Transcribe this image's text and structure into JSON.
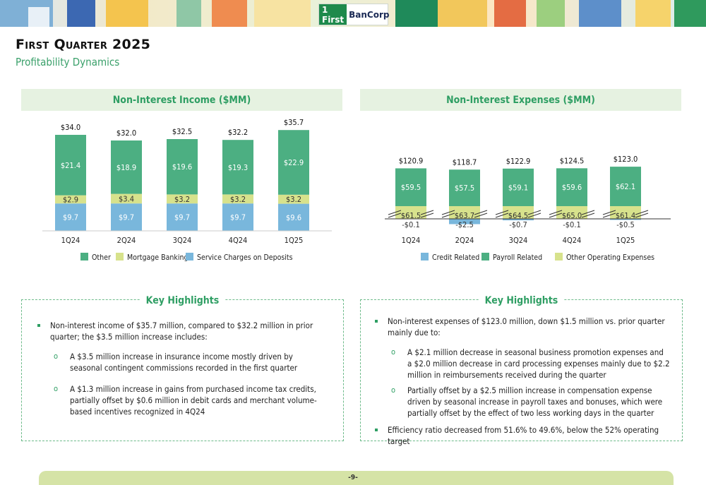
{
  "header": {
    "logo_mark": "1 First",
    "logo_name": "BanCorp"
  },
  "title": "First Quarter 2025",
  "subtitle": "Profitability Dynamics",
  "page_number": "-9-",
  "colors": {
    "other": "#4caf82",
    "mortgage": "#d7e28c",
    "service": "#79b7dc",
    "credit": "#79b7dc",
    "payroll": "#4caf82",
    "other_opex": "#d7e28c",
    "accent": "#2e9e63"
  },
  "chart_data": [
    {
      "type": "bar",
      "title": "Non-Interest Income ($MM)",
      "stacked": true,
      "categories": [
        "1Q24",
        "2Q24",
        "3Q24",
        "4Q24",
        "1Q25"
      ],
      "series": [
        {
          "name": "Service Charges on Deposits",
          "values": [
            9.7,
            9.7,
            9.7,
            9.7,
            9.6
          ],
          "labels": [
            "$9.7",
            "$9.7",
            "$9.7",
            "$9.7",
            "$9.6"
          ]
        },
        {
          "name": "Mortgage Banking",
          "values": [
            2.9,
            3.4,
            3.2,
            3.2,
            3.2
          ],
          "labels": [
            "$2.9",
            "$3.4",
            "$3.2",
            "$3.2",
            "$3.2"
          ]
        },
        {
          "name": "Other",
          "values": [
            21.4,
            18.9,
            19.6,
            19.3,
            22.9
          ],
          "labels": [
            "$21.4",
            "$18.9",
            "$19.6",
            "$19.3",
            "$22.9"
          ]
        }
      ],
      "totals": [
        "$34.0",
        "$32.0",
        "$32.5",
        "$32.2",
        "$35.7"
      ],
      "legend": [
        "Other",
        "Mortgage Banking",
        "Service Charges on Deposits"
      ],
      "legend_position": "bottom"
    },
    {
      "type": "bar",
      "title": "Non-Interest Expenses ($MM)",
      "stacked": true,
      "axis_break": true,
      "categories": [
        "1Q24",
        "2Q24",
        "3Q24",
        "4Q24",
        "1Q25"
      ],
      "series": [
        {
          "name": "Credit Related",
          "values": [
            -0.1,
            -2.5,
            -0.7,
            -0.1,
            -0.5
          ],
          "labels": [
            "-$0.1",
            "-$2.5",
            "-$0.7",
            "-$0.1",
            "-$0.5"
          ]
        },
        {
          "name": "Other Operating Expenses",
          "values": [
            61.5,
            63.7,
            64.5,
            65.0,
            61.4
          ],
          "labels": [
            "$61.5",
            "$63.7",
            "$64.5",
            "$65.0",
            "$61.4"
          ]
        },
        {
          "name": "Payroll Related",
          "values": [
            59.5,
            57.5,
            59.1,
            59.6,
            62.1
          ],
          "labels": [
            "$59.5",
            "$57.5",
            "$59.1",
            "$59.6",
            "$62.1"
          ]
        }
      ],
      "totals": [
        "$120.9",
        "$118.7",
        "$122.9",
        "$124.5",
        "$123.0"
      ],
      "legend": [
        "Credit Related",
        "Payroll Related",
        "Other Operating Expenses"
      ],
      "legend_position": "bottom"
    }
  ],
  "highlights_left": {
    "title": "Key Highlights",
    "bullet": "Non-interest income of $35.7 million, compared to $32.2 million in prior quarter; the $3.5 million increase includes:",
    "sub": [
      "A $3.5 million increase in insurance income mostly driven by seasonal contingent commissions recorded in the first quarter",
      "A $1.3 million increase in gains from purchased income tax credits, partially offset by $0.6 million in debit cards and merchant volume-based incentives recognized in 4Q24"
    ]
  },
  "highlights_right": {
    "title": "Key Highlights",
    "bullet": "Non-interest expenses of $123.0 million, down $1.5 million vs. prior quarter mainly due to:",
    "sub": [
      "A $2.1 million decrease in seasonal business promotion expenses and a $2.0 million decrease in card processing expenses mainly due to $2.2 million in reimbursements received during the quarter",
      "Partially offset by a $2.5 million increase in compensation expense driven by seasonal increase in payroll taxes and bonuses, which were partially offset by the effect of two less working days in the quarter"
    ],
    "bullet2": "Efficiency ratio decreased from 51.6% to 49.6%, below the 52% operating target"
  }
}
